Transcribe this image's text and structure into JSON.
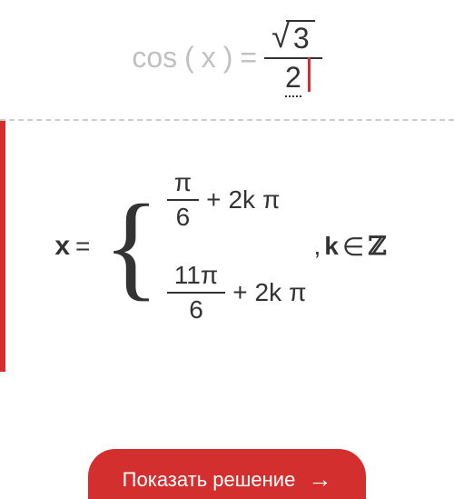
{
  "equation": {
    "lhs_func": "cos",
    "lhs_var": "x",
    "equals": "=",
    "numerator_sqrt_arg": "3",
    "denominator": "2"
  },
  "solution": {
    "var": "x",
    "equals": "=",
    "case1": {
      "num": "π",
      "den": "6",
      "plus": "+",
      "k_term": "2k",
      "pi": "π"
    },
    "case2": {
      "num": "11π",
      "den": "6",
      "plus": "+",
      "k_term": "2k",
      "pi": "π"
    },
    "comma": ",",
    "condition_var": "k",
    "condition_in": "∈",
    "condition_set": "ℤ"
  },
  "button": {
    "label": "Показать решение",
    "arrow": "→"
  },
  "colors": {
    "accent": "#d32f2f",
    "faded": "#c0c0c0",
    "text": "#333333",
    "divider": "#cccccc",
    "background": "#ffffff"
  }
}
